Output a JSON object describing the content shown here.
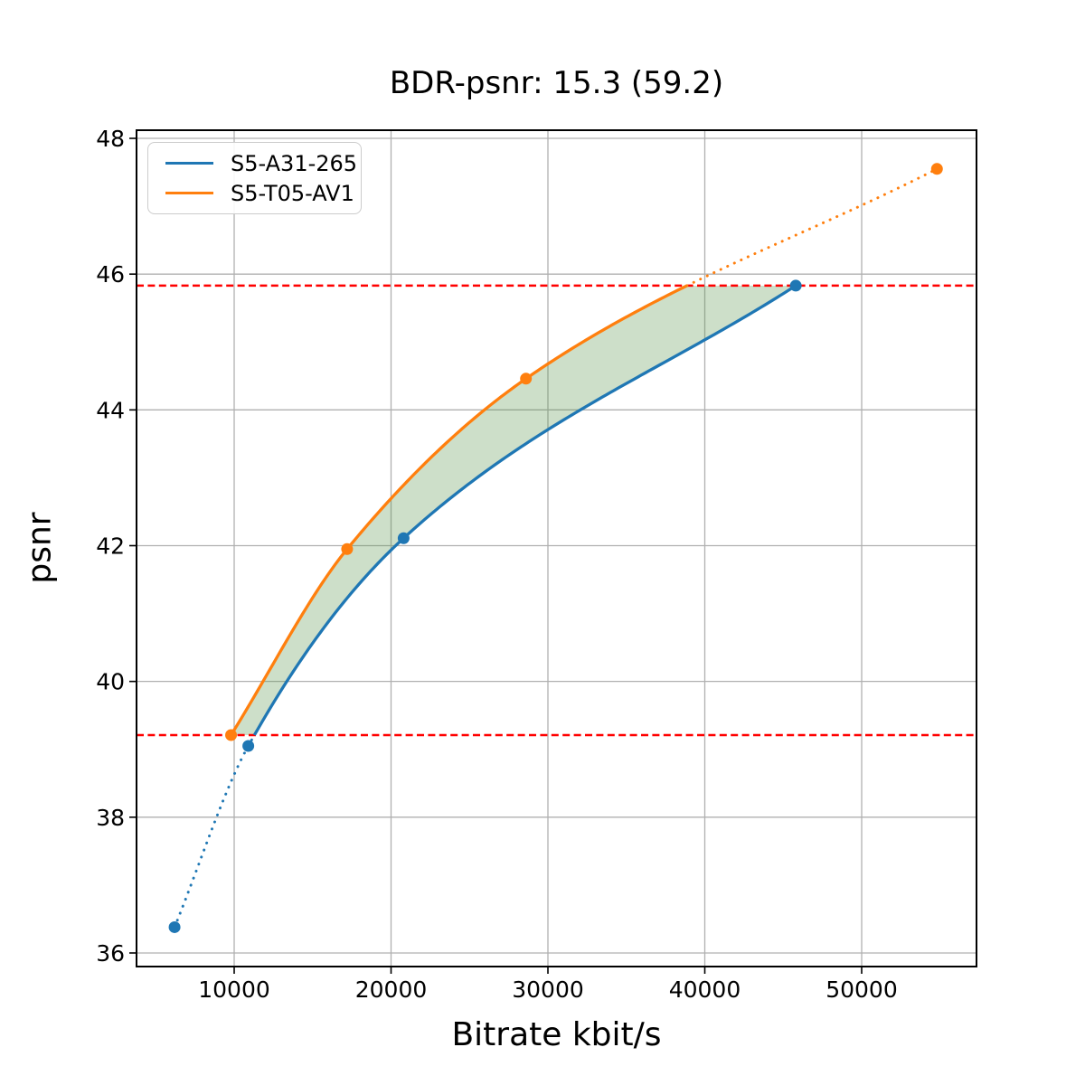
{
  "chart_data": {
    "type": "line",
    "title": "BDR-psnr: 15.3 (59.2)",
    "xlabel": "Bitrate kbit/s",
    "ylabel": "psnr",
    "xlim": [
      3775,
      57320
    ],
    "ylim": [
      35.8,
      48.12
    ],
    "xticks": [
      10000,
      20000,
      30000,
      40000,
      50000
    ],
    "yticks": [
      36,
      38,
      40,
      42,
      44,
      46,
      48
    ],
    "grid": true,
    "grid_color": "#b0b0b0",
    "spine_color": "#000000",
    "legend_position": "upper-left",
    "series": [
      {
        "name": "S5-A31-265",
        "color": "#1f77b4",
        "marker": "circle",
        "points": [
          [
            6200,
            36.38
          ],
          [
            10900,
            39.05
          ],
          [
            20800,
            42.11
          ],
          [
            45800,
            45.83
          ]
        ],
        "line_style_outside_hlines": "dotted"
      },
      {
        "name": "S5-T05-AV1",
        "color": "#ff7f0e",
        "marker": "circle",
        "points": [
          [
            9800,
            39.21
          ],
          [
            17200,
            41.95
          ],
          [
            28600,
            44.46
          ],
          [
            54800,
            47.55
          ]
        ],
        "line_style_outside_hlines": "dotted"
      }
    ],
    "hlines": {
      "values": [
        39.21,
        45.83
      ],
      "color": "#ff0000",
      "style": "dashed"
    },
    "fill_between": {
      "color": "#5a964b",
      "opacity": 0.3
    }
  },
  "legend": {
    "items": [
      {
        "label": "S5-A31-265",
        "color": "#1f77b4"
      },
      {
        "label": "S5-T05-AV1",
        "color": "#ff7f0e"
      }
    ]
  }
}
